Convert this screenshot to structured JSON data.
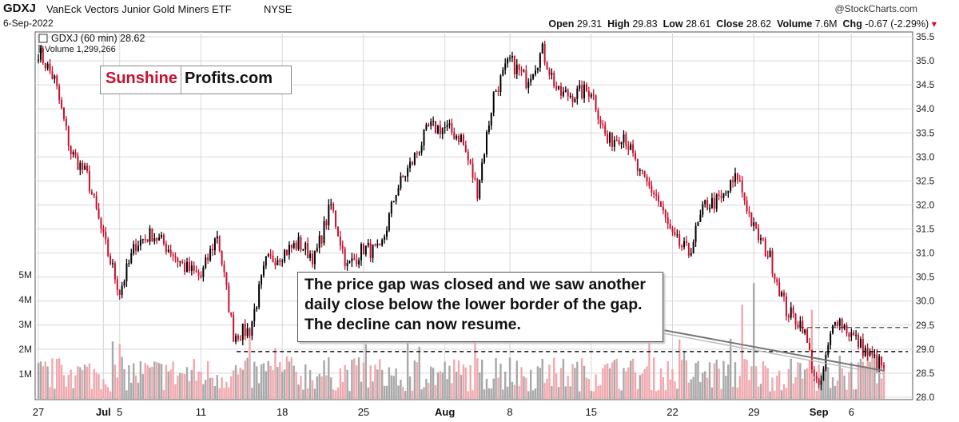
{
  "header": {
    "ticker": "GDXJ",
    "name": "VanEck Vectors Junior Gold Miners ETF",
    "exchange": "NYSE",
    "credit": "@StockCharts.com",
    "date": "6-Sep-2022",
    "open_label": "Open",
    "open": "29.31",
    "high_label": "High",
    "high": "29.83",
    "low_label": "Low",
    "low": "28.61",
    "close_label": "Close",
    "close": "28.62",
    "volume_label": "Volume",
    "volume": "7.6M",
    "chg_label": "Chg",
    "chg": "-0.67 (-2.29%)"
  },
  "legend": {
    "price": "GDXJ (60 min) 28.62",
    "volume": "Volume 1,299,266"
  },
  "logo": {
    "part1": "Sunshine",
    "part2": "Profits.com"
  },
  "annotation": "The price gap was closed and we saw another daily close below the lower border of the gap. The decline can now resume.",
  "colors": {
    "up": "#000000",
    "down": "#c8102e",
    "vol_down": "#f0a8ae",
    "vol_up": "#a8a8a8",
    "grid": "#d8d8d8"
  },
  "chart_data": {
    "type": "candlestick",
    "interval": "60 min",
    "price_axis": {
      "side": "right",
      "ylim": [
        27.95,
        35.6
      ],
      "ticks": [
        35.5,
        35.0,
        34.5,
        34.0,
        33.5,
        33.0,
        32.5,
        32.0,
        31.5,
        31.0,
        30.5,
        30.0,
        29.5,
        29.0,
        28.5,
        28.0
      ]
    },
    "volume_axis": {
      "side": "left",
      "ylim": [
        0,
        5.2
      ],
      "ticks": [
        "5M",
        "4M",
        "3M",
        "2M",
        "1M"
      ],
      "tick_values": [
        5,
        4,
        3,
        2,
        1
      ]
    },
    "x_ticks": [
      "27",
      "Jul",
      "5",
      "11",
      "18",
      "25",
      "Aug",
      "8",
      "15",
      "22",
      "29",
      "Sep",
      "6"
    ],
    "x_tick_bold": [
      false,
      true,
      false,
      false,
      false,
      false,
      true,
      false,
      false,
      false,
      false,
      true,
      false
    ],
    "x_tick_sessions": [
      0,
      4,
      5,
      10,
      15,
      20,
      25,
      29,
      34,
      39,
      44,
      48,
      50
    ],
    "sessions": 53,
    "anchor_close": [
      [
        0,
        35.2
      ],
      [
        1,
        34.6
      ],
      [
        2,
        33.1
      ],
      [
        3,
        32.6
      ],
      [
        4,
        31.3
      ],
      [
        5,
        30.2
      ],
      [
        6,
        31.2
      ],
      [
        7,
        31.4
      ],
      [
        8,
        31.1
      ],
      [
        9,
        30.7
      ],
      [
        10,
        30.5
      ],
      [
        11,
        31.4
      ],
      [
        12,
        29.3
      ],
      [
        13,
        29.4
      ],
      [
        14,
        30.8
      ],
      [
        15,
        31.0
      ],
      [
        16,
        31.2
      ],
      [
        17,
        30.9
      ],
      [
        18,
        32.0
      ],
      [
        19,
        30.7
      ],
      [
        20,
        31.1
      ],
      [
        21,
        31.0
      ],
      [
        22,
        32.3
      ],
      [
        23,
        32.9
      ],
      [
        24,
        33.6
      ],
      [
        25,
        33.6
      ],
      [
        26,
        33.4
      ],
      [
        27,
        32.3
      ],
      [
        28,
        34.3
      ],
      [
        29,
        35.0
      ],
      [
        30,
        34.6
      ],
      [
        31,
        35.2
      ],
      [
        32,
        34.3
      ],
      [
        33,
        34.3
      ],
      [
        34,
        34.4
      ],
      [
        35,
        33.3
      ],
      [
        36,
        33.5
      ],
      [
        37,
        32.6
      ],
      [
        38,
        32.2
      ],
      [
        39,
        31.3
      ],
      [
        40,
        31.0
      ],
      [
        41,
        32.0
      ],
      [
        42,
        32.1
      ],
      [
        43,
        32.6
      ],
      [
        44,
        31.5
      ],
      [
        45,
        30.9
      ],
      [
        46,
        29.8
      ],
      [
        47,
        29.5
      ],
      [
        48,
        28.1
      ],
      [
        49,
        29.7
      ],
      [
        50,
        29.3
      ],
      [
        51,
        28.9
      ],
      [
        52,
        28.62
      ]
    ],
    "horizontal_lines": [
      29.45,
      28.95
    ],
    "trendline": {
      "from": [
        38,
        29.35
      ],
      "to": [
        52,
        28.55
      ]
    },
    "volume_million_sample": "approx. 0.3–2.2M per bar with spikes near 4.8M (late Aug, early Sep)"
  }
}
